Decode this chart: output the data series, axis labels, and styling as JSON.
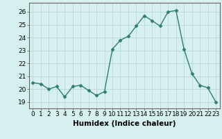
{
  "x": [
    0,
    1,
    2,
    3,
    4,
    5,
    6,
    7,
    8,
    9,
    10,
    11,
    12,
    13,
    14,
    15,
    16,
    17,
    18,
    19,
    20,
    21,
    22,
    23
  ],
  "y": [
    20.5,
    20.4,
    20.0,
    20.2,
    19.4,
    20.2,
    20.3,
    19.9,
    19.5,
    19.8,
    23.1,
    23.8,
    24.1,
    24.9,
    25.7,
    25.3,
    24.9,
    26.0,
    26.1,
    23.1,
    21.2,
    20.3,
    20.1,
    19.0
  ],
  "line_color": "#2e7d6e",
  "marker": "D",
  "markersize": 2.5,
  "linewidth": 1.0,
  "background_color": "#d6f0ef",
  "grid_color": "#b8d8d6",
  "xlabel": "Humidex (Indice chaleur)",
  "ylim": [
    18.5,
    26.7
  ],
  "xlim": [
    -0.5,
    23.5
  ],
  "yticks": [
    19,
    20,
    21,
    22,
    23,
    24,
    25,
    26
  ],
  "xticks": [
    0,
    1,
    2,
    3,
    4,
    5,
    6,
    7,
    8,
    9,
    10,
    11,
    12,
    13,
    14,
    15,
    16,
    17,
    18,
    19,
    20,
    21,
    22,
    23
  ],
  "tick_fontsize": 6.5,
  "xlabel_fontsize": 7.5,
  "axis_color": "#666666"
}
